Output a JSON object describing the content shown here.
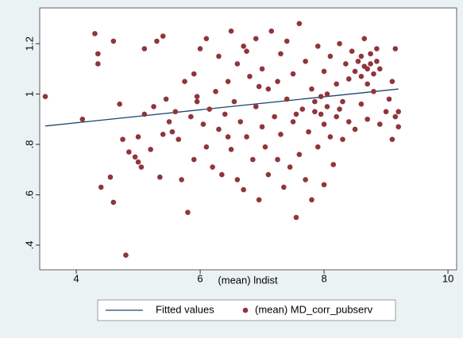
{
  "chart_data": {
    "type": "scatter",
    "xlabel": "(mean) lndist",
    "xlim": [
      3.41,
      10.14
    ],
    "xticks": [
      4,
      6,
      8,
      10
    ],
    "ylim": [
      0.302,
      1.342
    ],
    "yticks": [
      {
        "value": 0.4,
        "label": ".4"
      },
      {
        "value": 0.6,
        "label": ".6"
      },
      {
        "value": 0.8,
        "label": ".8"
      },
      1,
      {
        "value": 1.2,
        "label": "1.2"
      }
    ],
    "series": [
      {
        "name": "Fitted values",
        "type": "line",
        "color": "#1a476f",
        "x": [
          3.5,
          9.2
        ],
        "values": [
          0.873,
          1.02
        ]
      },
      {
        "name": "(mean) MD_corr_pubserv",
        "type": "scatter",
        "color": "#90353b",
        "x": [
          3.5,
          4.1,
          4.3,
          4.35,
          4.35,
          4.4,
          4.55,
          4.6,
          4.6,
          4.7,
          4.75,
          4.8,
          4.85,
          4.95,
          5.0,
          5.0,
          5.05,
          5.1,
          5.1,
          5.2,
          5.25,
          5.3,
          5.35,
          5.4,
          5.4,
          5.45,
          5.5,
          5.55,
          5.6,
          5.65,
          5.7,
          5.75,
          5.8,
          5.85,
          5.9,
          5.9,
          5.95,
          6.0,
          6.05,
          6.1,
          6.1,
          6.15,
          6.2,
          6.25,
          6.3,
          6.3,
          6.35,
          6.4,
          6.45,
          6.5,
          6.5,
          6.55,
          6.6,
          6.6,
          6.65,
          6.7,
          6.7,
          6.75,
          6.8,
          6.85,
          6.9,
          6.9,
          6.95,
          7.0,
          7.0,
          7.05,
          7.1,
          7.1,
          7.15,
          7.2,
          7.25,
          7.3,
          7.3,
          7.35,
          7.4,
          7.4,
          7.45,
          7.5,
          7.5,
          7.55,
          7.6,
          7.6,
          7.65,
          7.7,
          7.7,
          7.75,
          7.8,
          7.8,
          7.85,
          7.9,
          7.9,
          7.95,
          8.0,
          8.0,
          8.0,
          8.05,
          8.1,
          8.1,
          8.15,
          8.2,
          8.2,
          8.25,
          8.3,
          8.3,
          8.35,
          8.4,
          8.4,
          8.45,
          8.5,
          8.5,
          8.55,
          8.6,
          8.6,
          8.6,
          8.65,
          8.65,
          8.7,
          8.7,
          8.7,
          8.75,
          8.75,
          8.8,
          8.8,
          8.85,
          8.85,
          8.9,
          8.9,
          9.0,
          9.05,
          9.1,
          9.1,
          9.15,
          9.15,
          9.2,
          9.2,
          7.95,
          7.85,
          8.05,
          6.95,
          6.45,
          7.25,
          5.95,
          8.25,
          7.55,
          6.75
        ],
        "values": [
          0.99,
          0.9,
          1.24,
          1.16,
          1.12,
          0.63,
          0.67,
          0.57,
          1.21,
          0.96,
          0.82,
          0.36,
          0.77,
          0.75,
          0.83,
          0.73,
          0.71,
          0.92,
          1.18,
          0.78,
          0.95,
          1.21,
          0.67,
          0.84,
          1.23,
          0.98,
          0.89,
          0.85,
          0.93,
          0.82,
          0.66,
          1.05,
          0.53,
          0.91,
          0.74,
          1.08,
          0.97,
          1.18,
          0.88,
          0.79,
          1.22,
          0.94,
          0.71,
          1.01,
          0.86,
          1.15,
          0.68,
          0.92,
          1.05,
          0.78,
          1.25,
          0.97,
          0.66,
          1.12,
          0.89,
          0.62,
          1.19,
          0.83,
          1.07,
          0.74,
          0.95,
          1.22,
          0.58,
          0.87,
          1.1,
          0.79,
          1.02,
          0.68,
          1.25,
          0.91,
          0.74,
          1.16,
          0.84,
          0.63,
          0.98,
          1.21,
          0.71,
          0.89,
          1.08,
          0.51,
          0.76,
          1.28,
          0.94,
          0.66,
          1.13,
          0.85,
          1.02,
          0.58,
          0.93,
          1.19,
          0.79,
          0.99,
          0.88,
          1.09,
          0.64,
          0.95,
          0.83,
          1.15,
          0.72,
          1.04,
          0.91,
          1.2,
          0.82,
          0.97,
          1.12,
          0.89,
          1.06,
          1.17,
          0.86,
          1.09,
          1.13,
          0.96,
          1.15,
          1.07,
          1.22,
          1.11,
          1.1,
          1.04,
          0.9,
          1.16,
          1.12,
          1.08,
          1.01,
          1.18,
          1.13,
          1.1,
          0.88,
          0.93,
          0.98,
          0.82,
          1.05,
          1.18,
          0.91,
          0.93,
          0.87,
          0.92,
          0.97,
          1.0,
          1.03,
          0.83,
          1.05,
          0.99,
          0.94,
          0.92,
          1.17
        ]
      }
    ]
  }
}
